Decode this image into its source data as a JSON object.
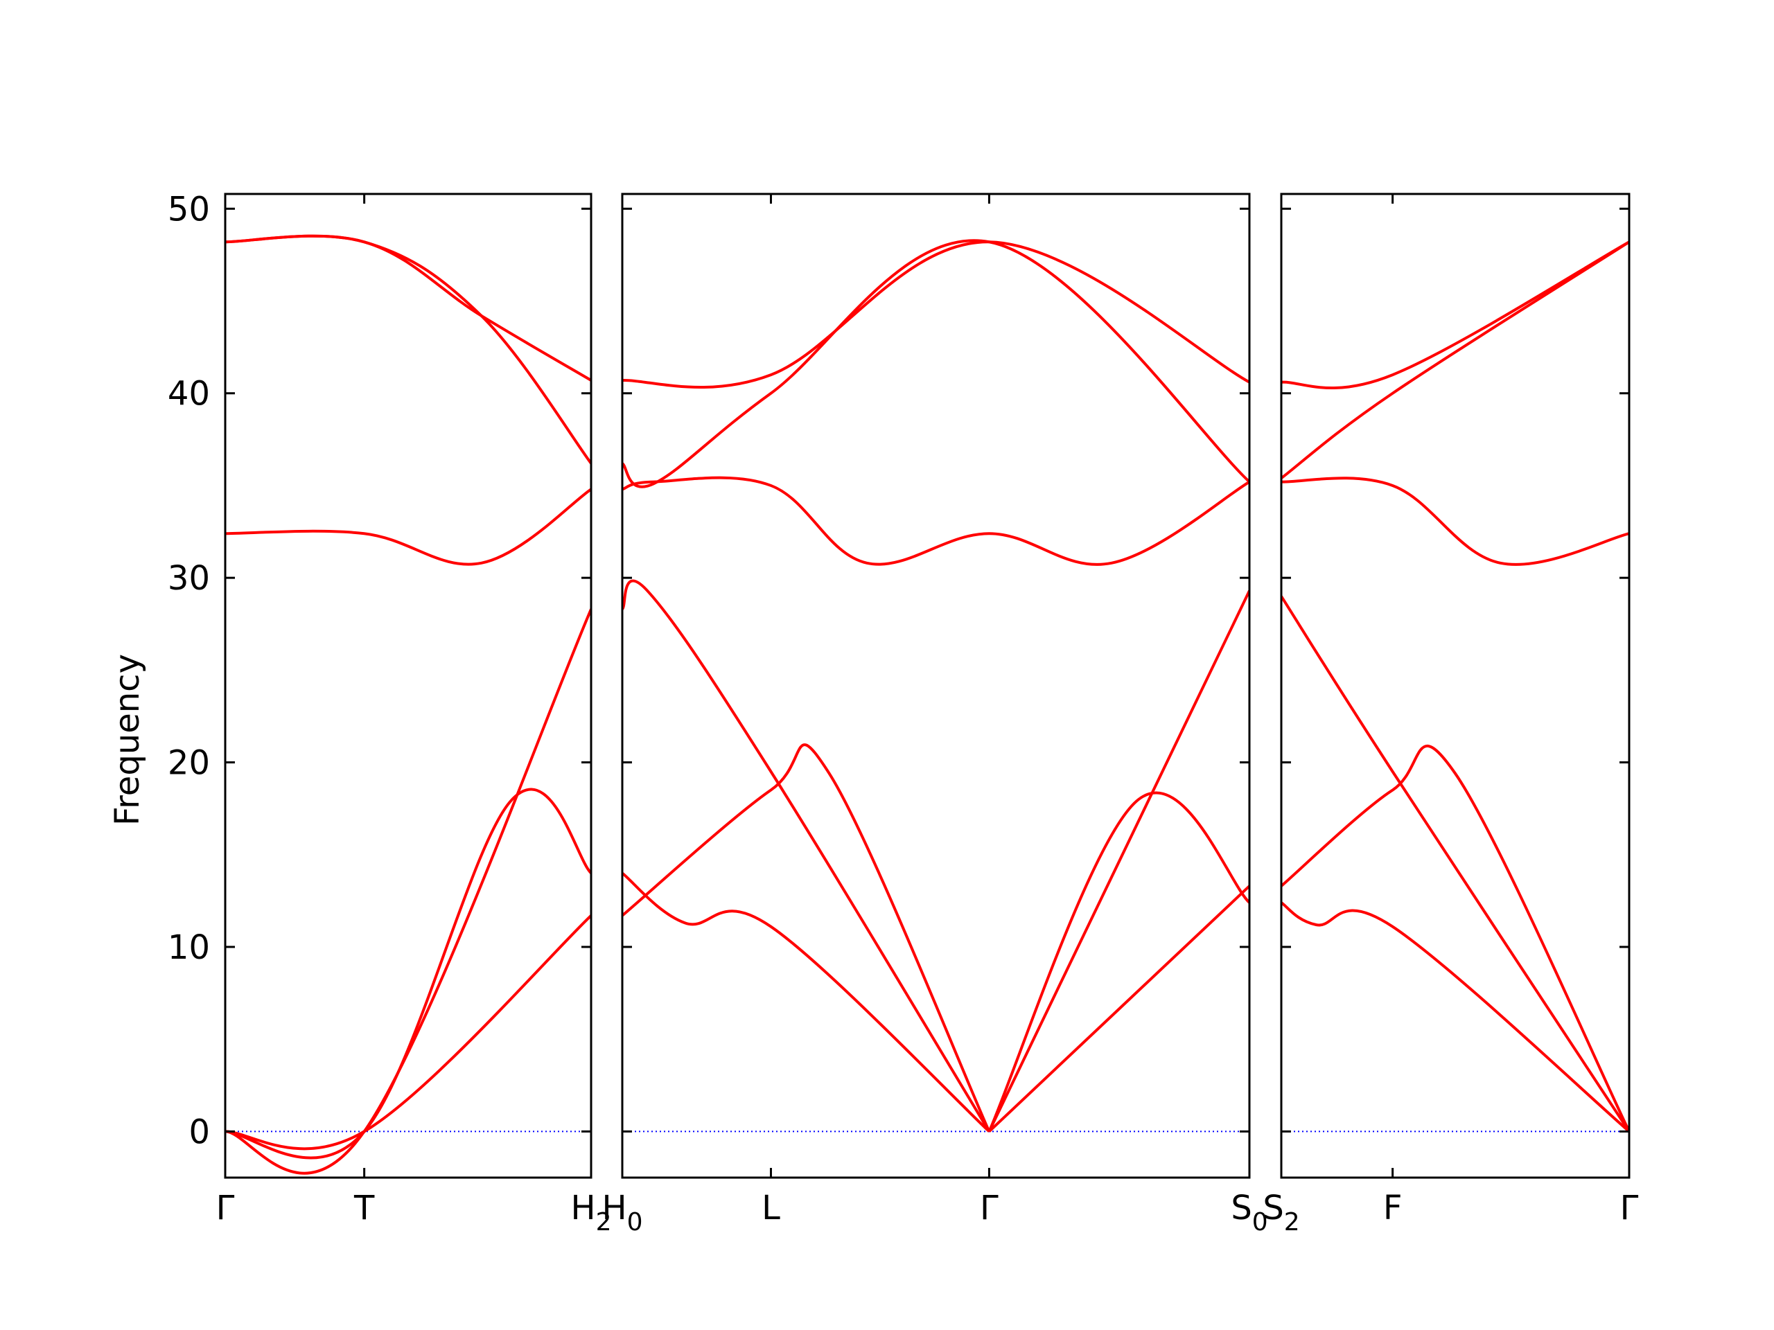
{
  "chart_data": {
    "type": "line",
    "title": "",
    "ylabel": "Frequency",
    "ylim": [
      -2.5,
      50.8
    ],
    "yticks": [
      0,
      10,
      20,
      30,
      40,
      50
    ],
    "grid": false,
    "legend": "none",
    "colors": {
      "band": "#ff0000",
      "zero_line": "#0000ff",
      "axes": "#000000"
    },
    "panels": [
      {
        "xticks": [
          {
            "pos": 0,
            "label": "Γ",
            "sub": ""
          },
          {
            "pos": 0.38,
            "label": "T",
            "sub": ""
          },
          {
            "pos": 1.0,
            "label": "H",
            "sub": "2"
          }
        ],
        "bands": [
          [
            [
              0,
              0
            ],
            [
              0.38,
              0
            ],
            [
              1.0,
              11.7
            ]
          ],
          [
            [
              0,
              0
            ],
            [
              0.38,
              0
            ],
            [
              0.78,
              17.9
            ],
            [
              1.0,
              14.0
            ]
          ],
          [
            [
              0,
              0
            ],
            [
              0.38,
              0
            ],
            [
              1.0,
              28.3
            ]
          ],
          [
            [
              0,
              32.4
            ],
            [
              0.38,
              32.4
            ],
            [
              0.7,
              30.8
            ],
            [
              1.0,
              34.8
            ]
          ],
          [
            [
              0,
              48.2
            ],
            [
              0.38,
              48.2
            ],
            [
              0.7,
              44.2
            ],
            [
              1.0,
              36.2
            ]
          ],
          [
            [
              0,
              48.2
            ],
            [
              0.38,
              48.2
            ],
            [
              0.7,
              44.2
            ],
            [
              1.0,
              40.7
            ]
          ]
        ]
      },
      {
        "xticks": [
          {
            "pos": 0,
            "label": "H",
            "sub": "0"
          },
          {
            "pos": 0.237,
            "label": "L",
            "sub": ""
          },
          {
            "pos": 0.585,
            "label": "Γ",
            "sub": ""
          },
          {
            "pos": 1.0,
            "label": "S",
            "sub": "0"
          }
        ],
        "bands": [
          [
            [
              0,
              11.7
            ],
            [
              0.237,
              18.5
            ],
            [
              0.33,
              19.4
            ],
            [
              0.585,
              0
            ]
          ],
          [
            [
              0,
              14.0
            ],
            [
              0.1,
              11.3
            ],
            [
              0.237,
              11.1
            ],
            [
              0.585,
              0
            ]
          ],
          [
            [
              0,
              28.3
            ],
            [
              0.04,
              29.3
            ],
            [
              0.237,
              19.5
            ],
            [
              0.585,
              0
            ]
          ],
          [
            [
              0,
              34.8
            ],
            [
              0.05,
              35.2
            ],
            [
              0.237,
              35.0
            ],
            [
              0.39,
              30.8
            ],
            [
              0.585,
              32.4
            ],
            [
              0.78,
              30.8
            ],
            [
              1.0,
              35.2
            ]
          ],
          [
            [
              0,
              36.2
            ],
            [
              0.05,
              35.1
            ],
            [
              0.237,
              40.0
            ],
            [
              0.585,
              48.2
            ],
            [
              1.0,
              35.2
            ]
          ],
          [
            [
              0,
              40.7
            ],
            [
              0.237,
              41.0
            ],
            [
              0.585,
              48.2
            ],
            [
              1.0,
              40.6
            ]
          ],
          [
            [
              0.585,
              0
            ],
            [
              0.82,
              17.9
            ],
            [
              1.0,
              12.4
            ]
          ],
          [
            [
              0.585,
              0
            ],
            [
              1.0,
              29.3
            ]
          ],
          [
            [
              0.585,
              0
            ],
            [
              1.0,
              13.3
            ]
          ]
        ]
      },
      {
        "xticks": [
          {
            "pos": 0,
            "label": "S",
            "sub": "2"
          },
          {
            "pos": 0.32,
            "label": "F",
            "sub": ""
          },
          {
            "pos": 1.0,
            "label": "Γ",
            "sub": ""
          }
        ],
        "bands": [
          [
            [
              0,
              13.3
            ],
            [
              0.32,
              18.5
            ],
            [
              0.5,
              19.4
            ],
            [
              1.0,
              0
            ]
          ],
          [
            [
              0,
              12.4
            ],
            [
              0.1,
              11.2
            ],
            [
              0.32,
              11.1
            ],
            [
              1.0,
              0
            ]
          ],
          [
            [
              0,
              29.0
            ],
            [
              0.32,
              19.5
            ],
            [
              1.0,
              0
            ]
          ],
          [
            [
              0,
              35.2
            ],
            [
              0.32,
              35.0
            ],
            [
              0.63,
              30.8
            ],
            [
              1.0,
              32.4
            ]
          ],
          [
            [
              0,
              35.4
            ],
            [
              0.32,
              40.0
            ],
            [
              1.0,
              48.2
            ]
          ],
          [
            [
              0,
              40.6
            ],
            [
              0.32,
              41.0
            ],
            [
              1.0,
              48.2
            ]
          ]
        ]
      }
    ]
  }
}
